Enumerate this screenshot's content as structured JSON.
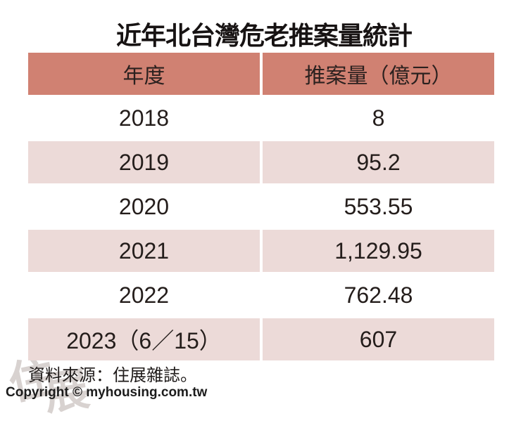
{
  "title": "近年北台灣危老推案量統計",
  "table": {
    "columns": [
      "年度",
      "推案量（億元）"
    ],
    "rows": [
      [
        "2018",
        "8"
      ],
      [
        "2019",
        "95.2"
      ],
      [
        "2020",
        "553.55"
      ],
      [
        "2021",
        "1,129.95"
      ],
      [
        "2022",
        "762.48"
      ],
      [
        "2023（6／15）",
        "607"
      ]
    ]
  },
  "footer": {
    "source_note": "資料來源：住展雜誌。",
    "copyright": "Copyright © myhousing.com.tw"
  },
  "watermark": {
    "char1": "住",
    "char2": "展"
  },
  "colors": {
    "header_bg": "#d08172",
    "row_alt_bg": "#ecdad8",
    "row_bg": "#ffffff",
    "text": "#241d1b"
  },
  "chart_data": {
    "type": "table",
    "title": "近年北台灣危老推案量統計",
    "columns": [
      "年度",
      "推案量（億元）"
    ],
    "rows": [
      [
        "2018",
        8
      ],
      [
        "2019",
        95.2
      ],
      [
        "2020",
        553.55
      ],
      [
        "2021",
        1129.95
      ],
      [
        "2022",
        762.48
      ],
      [
        "2023（6／15）",
        607
      ]
    ],
    "source": "資料來源：住展雜誌。"
  }
}
